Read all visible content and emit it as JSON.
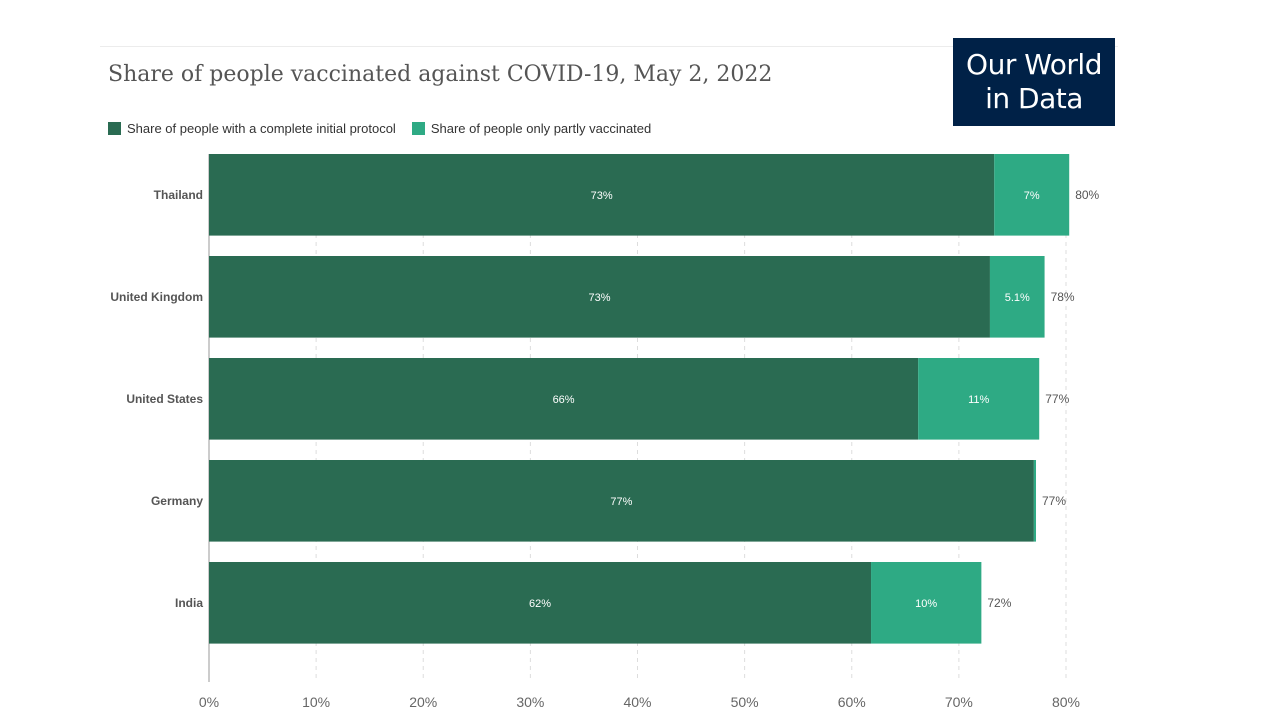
{
  "title": "Share of people vaccinated against COVID-19, May 2, 2022",
  "logo": {
    "line1": "Our World",
    "line2": "in Data"
  },
  "legend": [
    {
      "label": "Share of people with a complete initial protocol",
      "color": "#2a6b52"
    },
    {
      "label": "Share of people only partly vaccinated",
      "color": "#2eaa84"
    }
  ],
  "chart_data": {
    "type": "bar",
    "orientation": "horizontal",
    "stacked": true,
    "categories": [
      "Thailand",
      "United Kingdom",
      "United States",
      "Germany",
      "India"
    ],
    "series": [
      {
        "name": "Share of people with a complete initial protocol",
        "color": "#2a6b52",
        "values": [
          73.3,
          72.9,
          66.2,
          77.0,
          61.8
        ],
        "labels": [
          "73%",
          "73%",
          "66%",
          "77%",
          "62%"
        ]
      },
      {
        "name": "Share of people only partly vaccinated",
        "color": "#2eaa84",
        "values": [
          7.0,
          5.1,
          11.3,
          0.2,
          10.3
        ],
        "labels": [
          "7%",
          "5.1%",
          "11%",
          "",
          "10%"
        ]
      }
    ],
    "totals": [
      "80%",
      "78%",
      "77%",
      "77%",
      "72%"
    ],
    "x_ticks": [
      "0%",
      "10%",
      "20%",
      "30%",
      "40%",
      "50%",
      "60%",
      "70%",
      "80%"
    ],
    "xlim": [
      0,
      80
    ],
    "grid": "vertical dashed",
    "legend_position": "top-left"
  }
}
